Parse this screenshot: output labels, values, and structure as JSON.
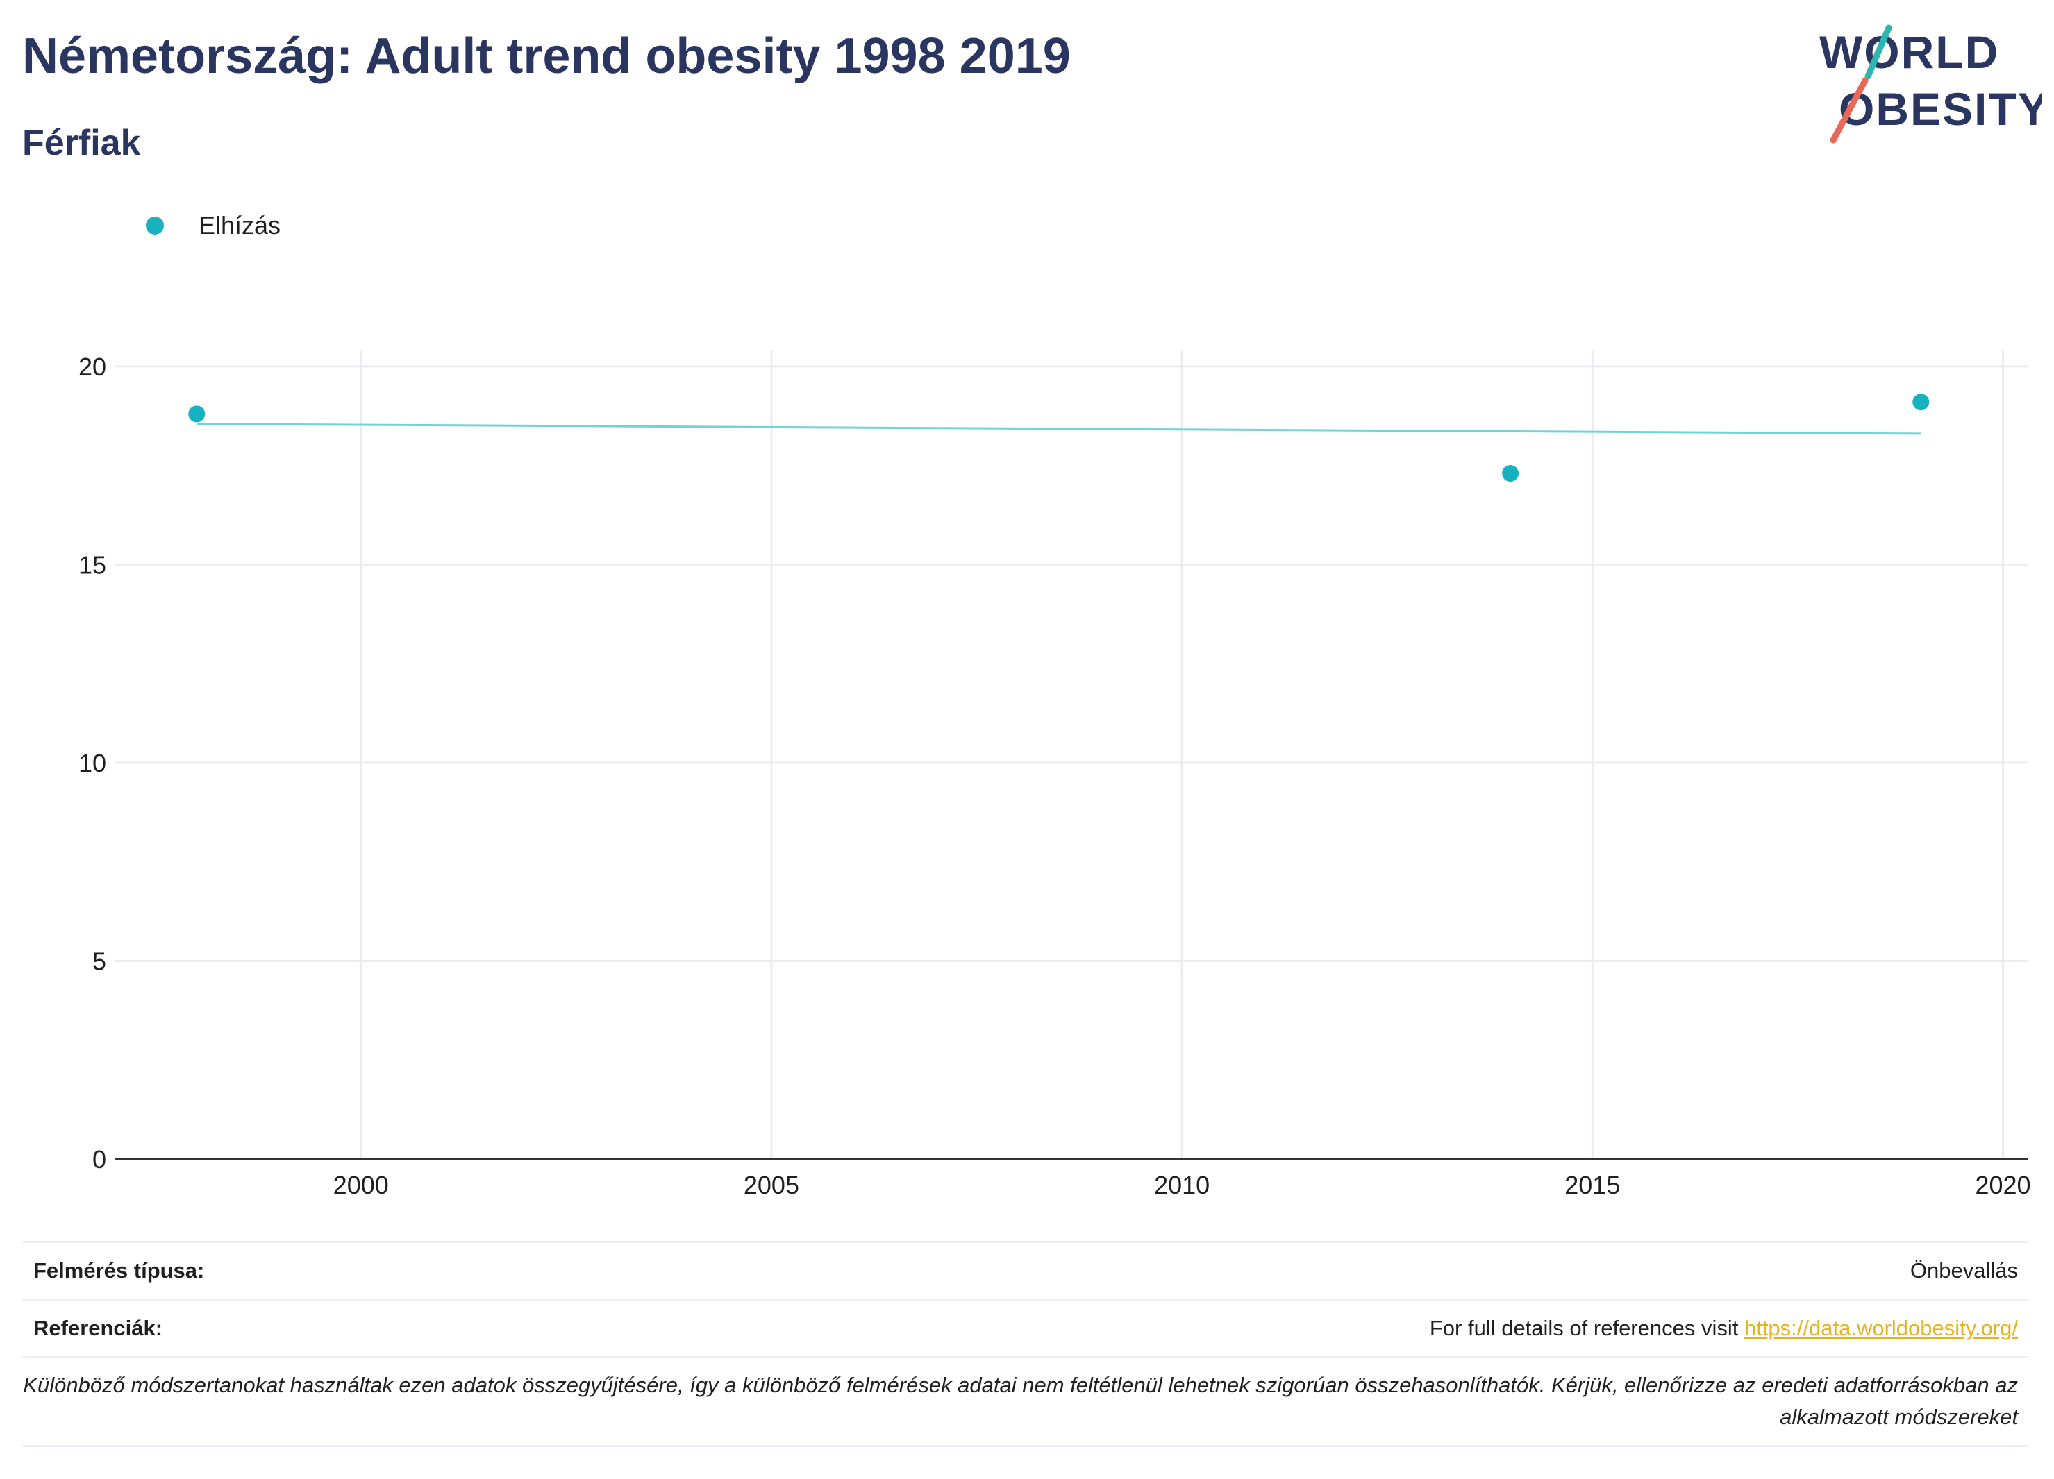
{
  "header": {
    "title": "Németország: Adult trend obesity 1998 2019",
    "subtitle": "Férfiak"
  },
  "logo": {
    "line1": "WORLD",
    "line2": "OBESITY"
  },
  "colors": {
    "accent": "#17b1bf",
    "navy": "#2a3560",
    "logo_red": "#e8685a",
    "logo_teal": "#2bb6b0",
    "link": "#e8b21e"
  },
  "chart_data": {
    "type": "scatter",
    "series": [
      {
        "name": "Elhízás",
        "x": [
          1998,
          2014,
          2019
        ],
        "y": [
          18.8,
          17.3,
          19.1
        ]
      }
    ],
    "trendline": {
      "x": [
        1998,
        2019
      ],
      "y": [
        18.55,
        18.3
      ]
    },
    "xlim": [
      1997,
      2020.3
    ],
    "ylim": [
      0,
      20.4
    ],
    "xticks": [
      2000,
      2005,
      2010,
      2015,
      2020
    ],
    "yticks": [
      0,
      5,
      10,
      15,
      20
    ],
    "grid": true,
    "legend": "top-left",
    "xlabel": "",
    "ylabel": ""
  },
  "footer": {
    "survey_type_label": "Felmérés típusa:",
    "survey_type_value": "Önbevallás",
    "references_label": "Referenciák:",
    "references_text": "For full details of references visit ",
    "references_link": "https://data.worldobesity.org/",
    "note": "Különböző módszertanokat használtak ezen adatok összegyűjtésére, így a különböző felmérések adatai nem feltétlenül lehetnek szigorúan összehasonlíthatók. Kérjük, ellenőrizze az eredeti adatforrásokban az alkalmazott módszereket"
  }
}
